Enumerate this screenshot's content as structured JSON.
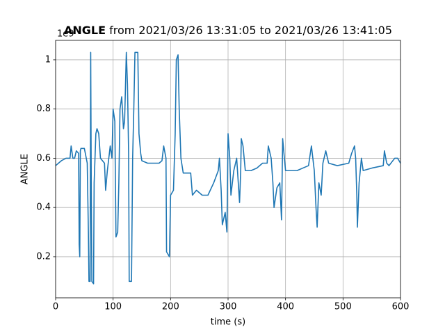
{
  "chart_data": {
    "type": "line",
    "title": {
      "bold": "ANGLE",
      "rest": "from 2021/03/26 13:31:05 to 2021/03/26 13:41:05"
    },
    "offset_label": "1e9",
    "x_label": "time (s)",
    "y_label": "ANGLE",
    "xlim": [
      0,
      600
    ],
    "ylim": [
      0.033,
      1.079
    ],
    "xticks": [
      0,
      100,
      200,
      300,
      400,
      500,
      600
    ],
    "yticks": [
      0.2,
      0.4,
      0.6,
      0.8,
      1.0
    ],
    "grid": true,
    "x": [
      0,
      5,
      10,
      18,
      25,
      27,
      30,
      33,
      36,
      40,
      41,
      42,
      43,
      44,
      45,
      50,
      55,
      57,
      58,
      60,
      61,
      62,
      63,
      66,
      67,
      70,
      72,
      75,
      78,
      85,
      87,
      90,
      95,
      98,
      100,
      103,
      105,
      108,
      110,
      112,
      115,
      118,
      120,
      123,
      125,
      127,
      128,
      132,
      134,
      136,
      138,
      143,
      145,
      148,
      150,
      160,
      180,
      185,
      188,
      192,
      193,
      198,
      200,
      205,
      208,
      210,
      213,
      215,
      218,
      222,
      235,
      238,
      245,
      255,
      265,
      275,
      283,
      285,
      288,
      290,
      295,
      298,
      300,
      303,
      305,
      310,
      315,
      320,
      322,
      323,
      326,
      330,
      340,
      350,
      360,
      368,
      370,
      375,
      378,
      380,
      385,
      390,
      393,
      395,
      398,
      400,
      420,
      440,
      445,
      450,
      453,
      455,
      458,
      462,
      465,
      470,
      475,
      490,
      510,
      515,
      520,
      522,
      524,
      525,
      528,
      532,
      535,
      550,
      570,
      572,
      576,
      580,
      590,
      595,
      600
    ],
    "series": [
      {
        "name": "ANGLE",
        "color": "#1f77b4",
        "values": [
          0.57,
          0.58,
          0.59,
          0.6,
          0.6,
          0.65,
          0.6,
          0.6,
          0.63,
          0.62,
          0.25,
          0.2,
          0.63,
          0.64,
          0.64,
          0.64,
          0.58,
          0.3,
          0.1,
          0.1,
          1.03,
          0.5,
          0.1,
          0.09,
          0.5,
          0.7,
          0.72,
          0.7,
          0.6,
          0.58,
          0.47,
          0.55,
          0.65,
          0.6,
          0.8,
          0.75,
          0.28,
          0.3,
          0.5,
          0.8,
          0.85,
          0.72,
          0.75,
          1.03,
          0.9,
          0.62,
          0.1,
          0.1,
          0.6,
          0.8,
          1.03,
          1.03,
          0.7,
          0.62,
          0.59,
          0.58,
          0.58,
          0.59,
          0.65,
          0.6,
          0.22,
          0.2,
          0.45,
          0.47,
          0.7,
          1.0,
          1.02,
          0.8,
          0.6,
          0.54,
          0.54,
          0.45,
          0.47,
          0.45,
          0.45,
          0.5,
          0.55,
          0.6,
          0.47,
          0.33,
          0.38,
          0.3,
          0.7,
          0.6,
          0.45,
          0.55,
          0.6,
          0.42,
          0.55,
          0.68,
          0.65,
          0.55,
          0.55,
          0.56,
          0.58,
          0.58,
          0.65,
          0.6,
          0.5,
          0.4,
          0.48,
          0.5,
          0.35,
          0.68,
          0.6,
          0.55,
          0.55,
          0.57,
          0.65,
          0.55,
          0.4,
          0.32,
          0.5,
          0.45,
          0.58,
          0.63,
          0.58,
          0.57,
          0.58,
          0.62,
          0.65,
          0.6,
          0.45,
          0.32,
          0.5,
          0.6,
          0.55,
          0.56,
          0.57,
          0.63,
          0.58,
          0.57,
          0.6,
          0.6,
          0.58
        ]
      }
    ]
  }
}
